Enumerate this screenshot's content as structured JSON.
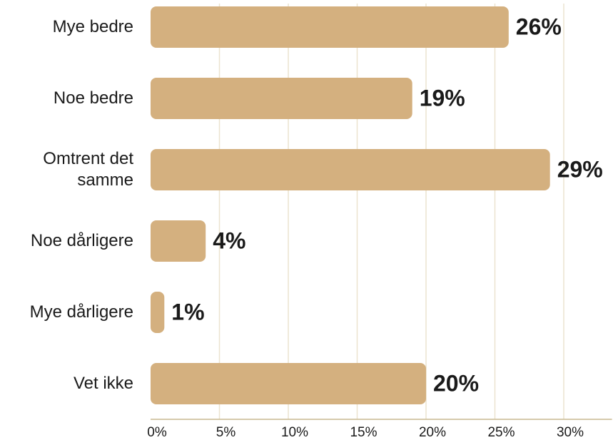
{
  "chart_data": {
    "type": "bar",
    "orientation": "horizontal",
    "categories": [
      "Mye bedre",
      "Noe bedre",
      "Omtrent det samme",
      "Noe dårligere",
      "Mye dårligere",
      "Vet ikke"
    ],
    "values": [
      26,
      19,
      29,
      4,
      1,
      20
    ],
    "value_labels": [
      "26%",
      "19%",
      "29%",
      "4%",
      "1%",
      "20%"
    ],
    "color": "#d4b07f",
    "xlim": [
      0,
      33.5
    ],
    "xticks": [
      {
        "value": 0,
        "label": "0%"
      },
      {
        "value": 5,
        "label": "5%"
      },
      {
        "value": 10,
        "label": "10%"
      },
      {
        "value": 15,
        "label": "15%"
      },
      {
        "value": 20,
        "label": "20%"
      },
      {
        "value": 25,
        "label": "25%"
      },
      {
        "value": 30,
        "label": "30%"
      }
    ],
    "grid": true
  }
}
